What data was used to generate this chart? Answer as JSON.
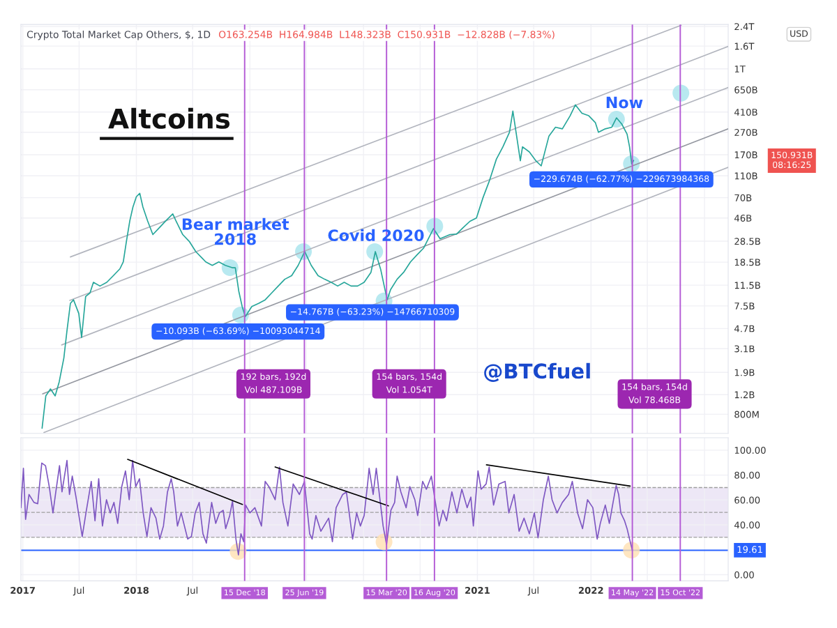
{
  "chart_data": [
    {
      "type": "line",
      "title": "Crypto Total Market Cap Others, $, 1D",
      "subtitle": "O163.254B  H164.984B  L148.323B  C150.931B  −12.828B (−7.83%)",
      "log": "y",
      "grid": true,
      "tick_labels": "y",
      "xlim": [
        "2016-12-26",
        "2023-03-18"
      ],
      "xticks": [
        "2017-01-01",
        "2017-07-01",
        "2018-01-01",
        "2018-07-01",
        "2019-01-01",
        "2019-07-01",
        "2020-01-01",
        "2020-07-01",
        "2021-01-01",
        "2021-07-01",
        "2022-01-01",
        "2022-07-01",
        "2023-01-01"
      ],
      "ylim": [
        540000000.0,
        2500000000000.0
      ],
      "yticks": [
        {
          "value": 800000000.0,
          "label": "800M"
        },
        {
          "value": 1200000000.0,
          "label": "1.2B"
        },
        {
          "value": 1900000000.0,
          "label": "1.9B"
        },
        {
          "value": 3100000000.0,
          "label": "3.1B"
        },
        {
          "value": 4700000000.0,
          "label": "4.7B"
        },
        {
          "value": 7500000000.0,
          "label": "7.5B"
        },
        {
          "value": 11500000000.0,
          "label": "11.5B"
        },
        {
          "value": 18500000000.0,
          "label": "18.5B"
        },
        {
          "value": 28500000000.0,
          "label": "28.5B"
        },
        {
          "value": 46000000000.0,
          "label": "46B"
        },
        {
          "value": 70000000000.0,
          "label": "70B"
        },
        {
          "value": 110000000000.0,
          "label": "110B"
        },
        {
          "value": 170000000000.0,
          "label": "170B"
        },
        {
          "value": 270000000000.0,
          "label": "270B"
        },
        {
          "value": 410000000000.0,
          "label": "410B"
        },
        {
          "value": 650000000000.0,
          "label": "650B"
        },
        {
          "value": 1000000000000.0,
          "label": "1T"
        },
        {
          "value": 1600000000000.0,
          "label": "1.6T"
        },
        {
          "value": 2400000000000.0,
          "label": "2.4T"
        }
      ],
      "series": [
        {
          "color": "#b2b5be",
          "x": [
            "2017-06-03",
            "2022-10-18"
          ],
          "values": [
            20600000000.0,
            2461000000000.0
          ]
        },
        {
          "color": "#b2b5be",
          "x": [
            "2017-06-01",
            "2023-03-18"
          ],
          "values": [
            8400000000.0,
            1590000000000.0
          ]
        },
        {
          "color": "#b2b5be",
          "x": [
            "2017-05-06",
            "2023-03-18"
          ],
          "values": [
            3350000000.0,
            680000000000.0
          ]
        },
        {
          "color": "#9598a1",
          "x": [
            "2017-03-06",
            "2023-03-18"
          ],
          "values": [
            1220000000.0,
            290000000000.0
          ]
        },
        {
          "color": "#b2b5be",
          "x": [
            "2017-03-10",
            "2023-03-18"
          ],
          "values": [
            550000000.0,
            131000000000.0
          ]
        },
        {
          "type": "scatter",
          "marker": "circle",
          "color": "#a6e3ec",
          "x": [
            "2018-10-29",
            "2018-12-02",
            "2019-06-22",
            "2020-02-06",
            "2020-03-07",
            "2020-08-17",
            "2022-03-24",
            "2022-05-11",
            "2022-10-17"
          ],
          "values": [
            16500000000.0,
            6200000000.0,
            23000000000.0,
            23000000000.0,
            8300000000.0,
            38800000000.0,
            354000000000.0,
            141000000000.0,
            606000000000.0
          ]
        },
        {
          "color": "#26a69a",
          "x": [
            "2017-03-04",
            "2017-03-16",
            "2017-03-31",
            "2017-04-15",
            "2017-04-28",
            "2017-05-13",
            "2017-05-23",
            "2017-06-03",
            "2017-06-13",
            "2017-06-30",
            "2017-07-09",
            "2017-07-22",
            "2017-08-05",
            "2017-08-16",
            "2017-09-06",
            "2017-09-28",
            "2017-10-19",
            "2017-11-09",
            "2017-11-20",
            "2017-11-30",
            "2017-12-11",
            "2017-12-21",
            "2018-01-01",
            "2018-01-12",
            "2018-01-22",
            "2018-02-06",
            "2018-02-23",
            "2018-03-16",
            "2018-04-06",
            "2018-04-28",
            "2018-05-08",
            "2018-05-30",
            "2018-06-20",
            "2018-07-11",
            "2018-08-01",
            "2018-08-12",
            "2018-09-02",
            "2018-09-23",
            "2018-10-14",
            "2018-11-05",
            "2018-11-15",
            "2018-11-26",
            "2018-12-07",
            "2018-12-17",
            "2019-01-07",
            "2019-01-29",
            "2019-02-19",
            "2019-03-12",
            "2019-04-02",
            "2019-04-23",
            "2019-05-15",
            "2019-06-05",
            "2019-06-26",
            "2019-07-17",
            "2019-08-08",
            "2019-08-29",
            "2019-09-19",
            "2019-10-10",
            "2019-10-31",
            "2019-11-22",
            "2019-12-13",
            "2020-01-03",
            "2020-01-25",
            "2020-02-08",
            "2020-02-25",
            "2020-03-17",
            "2020-03-28",
            "2020-04-18",
            "2020-05-09",
            "2020-05-31",
            "2020-06-21",
            "2020-07-12",
            "2020-08-13",
            "2020-09-03",
            "2020-10-05",
            "2020-10-26",
            "2020-11-16",
            "2020-12-08",
            "2020-12-29",
            "2021-01-19",
            "2021-02-09",
            "2021-03-03",
            "2021-03-24",
            "2021-04-14",
            "2021-04-25",
            "2021-05-19",
            "2021-05-26",
            "2021-06-17",
            "2021-07-08",
            "2021-07-25",
            "2021-08-19",
            "2021-09-09",
            "2021-10-01",
            "2021-10-26",
            "2021-11-12",
            "2021-12-03",
            "2021-12-25",
            "2022-01-15",
            "2022-01-25",
            "2022-02-16",
            "2022-03-09",
            "2022-03-24",
            "2022-04-10",
            "2022-04-27",
            "2022-05-05",
            "2022-05-12",
            "2022-05-18"
          ],
          "values": [
            600000000.0,
            1170000000.0,
            1350000000.0,
            1170000000.0,
            1560000000.0,
            2560000000.0,
            4500000000.0,
            7900000000.0,
            8500000000.0,
            6400000000.0,
            3900000000.0,
            9100000000.0,
            9800000000.0,
            12200000000.0,
            11300000000.0,
            12200000000.0,
            14000000000.0,
            16100000000.0,
            18600000000.0,
            28400000000.0,
            43500000000.0,
            57700000000.0,
            71400000000.0,
            76600000000.0,
            57700000000.0,
            43500000000.0,
            32700000000.0,
            37700000000.0,
            43500000000.0,
            50100000000.0,
            43500000000.0,
            32700000000.0,
            28400000000.0,
            23000000000.0,
            20000000000.0,
            18600000000.0,
            17300000000.0,
            18600000000.0,
            17300000000.0,
            16500000000.0,
            16500000000.0,
            10200000000.0,
            7400000000.0,
            6000000000.0,
            7400000000.0,
            7900000000.0,
            8500000000.0,
            9800000000.0,
            11300000000.0,
            13000000000.0,
            14000000000.0,
            17300000000.0,
            23000000000.0,
            17300000000.0,
            14000000000.0,
            13000000000.0,
            12200000000.0,
            11300000000.0,
            12200000000.0,
            11300000000.0,
            11300000000.0,
            12200000000.0,
            15000000000.0,
            23000000000.0,
            16000000000.0,
            8500000000.0,
            10500000000.0,
            13000000000.0,
            15000000000.0,
            18600000000.0,
            21500000000.0,
            24700000000.0,
            37000000000.0,
            30000000000.0,
            32700000000.0,
            33000000000.0,
            37700000000.0,
            43000000000.0,
            46000000000.0,
            70000000000.0,
            100000000000.0,
            155000000000.0,
            200000000000.0,
            270000000000.0,
            419000000000.0,
            150000000000.0,
            200000000000.0,
            180000000000.0,
            150000000000.0,
            135000000000.0,
            250000000000.0,
            300000000000.0,
            290000000000.0,
            380000000000.0,
            476000000000.0,
            400000000000.0,
            380000000000.0,
            330000000000.0,
            270000000000.0,
            290000000000.0,
            300000000000.0,
            364000000000.0,
            320000000000.0,
            260000000000.0,
            200000000000.0,
            140000000000.0,
            151000000000.0
          ]
        }
      ],
      "ref_lines": [
        {
          "axis": "x",
          "value": "2018-12-15",
          "color": "#b45cd6"
        },
        {
          "axis": "x",
          "value": "2019-06-25",
          "color": "#b45cd6"
        },
        {
          "axis": "x",
          "value": "2020-03-15",
          "color": "#b45cd6"
        },
        {
          "axis": "x",
          "value": "2020-08-16",
          "color": "#b45cd6"
        },
        {
          "axis": "x",
          "value": "2022-05-14",
          "color": "#b45cd6"
        },
        {
          "axis": "x",
          "value": "2022-10-15",
          "color": "#b45cd6"
        }
      ],
      "annotations": [
        "Altcoins",
        "USD",
        "Bear market\n2018",
        "Covid 2020",
        "Now",
        "−10.093B (−63.69%) −10093044714",
        "−14.767B (−63.23%) −14766710309",
        "−229.674B (−62.77%) −229673984368",
        "192 bars, 192d\nVol 487.109B",
        "154 bars, 154d\nVol 1.054T",
        "154 bars, 154d\nVol 78.468B",
        "@BTCfuel",
        "150.931B\n08:16:25"
      ]
    },
    {
      "type": "line",
      "grid": true,
      "xlim": [
        "2016-12-26",
        "2023-03-18"
      ],
      "xticks": [
        {
          "value": "2017-01-01",
          "label": "2017"
        },
        {
          "value": "2017-07-01",
          "label": "Jul"
        },
        {
          "value": "2018-01-01",
          "label": "2018"
        },
        {
          "value": "2018-07-01",
          "label": "Jul"
        },
        {
          "value": "2019-01-01",
          "label": null
        },
        {
          "value": "2019-07-01",
          "label": null
        },
        {
          "value": "2020-01-01",
          "label": null
        },
        {
          "value": "2020-07-01",
          "label": null
        },
        {
          "value": "2021-01-01",
          "label": "2021"
        },
        {
          "value": "2021-07-01",
          "label": "Jul"
        },
        {
          "value": "2022-01-01",
          "label": "2022"
        },
        {
          "value": "2022-07-01",
          "label": null
        },
        {
          "value": "2023-01-01",
          "label": null
        }
      ],
      "ylim": [
        -5,
        110
      ],
      "yticks": [
        {
          "value": 0,
          "label": "0.00"
        },
        {
          "value": 40,
          "label": "40.00"
        },
        {
          "value": 60,
          "label": "60.00"
        },
        {
          "value": 80,
          "label": "80.00"
        },
        {
          "value": 100,
          "label": "100.00"
        }
      ],
      "bands": [
        {
          "axis": "y",
          "from": 30,
          "to": 70,
          "color": "#ede7f6"
        }
      ],
      "ref_lines": [
        {
          "axis": "y",
          "value": 70,
          "color": "#9e9e9e",
          "line_style": "dashed"
        },
        {
          "axis": "y",
          "value": 50,
          "color": "#9e9e9e",
          "line_style": "dashed"
        },
        {
          "axis": "y",
          "value": 30,
          "color": "#9e9e9e",
          "line_style": "dashed"
        },
        {
          "axis": "y",
          "value": 19.61,
          "color": "#2962ff",
          "label": "19.61"
        },
        {
          "axis": "x",
          "value": "2018-12-15",
          "color": "#b45cd6",
          "label": "15 Dec '18"
        },
        {
          "axis": "x",
          "value": "2019-06-25",
          "color": "#b45cd6",
          "label": "25 Jun '19"
        },
        {
          "axis": "x",
          "value": "2020-03-15",
          "color": "#b45cd6",
          "label": "15 Mar '20"
        },
        {
          "axis": "x",
          "value": "2020-08-16",
          "color": "#b45cd6",
          "label": "16 Aug '20"
        },
        {
          "axis": "x",
          "value": "2022-05-14",
          "color": "#b45cd6",
          "label": "14 May '22"
        },
        {
          "axis": "x",
          "value": "2022-10-15",
          "color": "#b45cd6",
          "label": "15 Oct '22"
        }
      ],
      "series": [
        {
          "type": "scatter",
          "marker": "circle",
          "color": "#ffe0b2",
          "x": [
            "2018-11-24",
            "2020-03-07",
            "2022-05-11"
          ],
          "values": [
            18.6,
            26.3,
            19.7
          ]
        },
        {
          "color": "#7e57c2",
          "x": [
            "2016-12-26",
            "2017-01-03",
            "2017-01-10",
            "2017-01-21",
            "2017-02-06",
            "2017-02-18",
            "2017-03-03",
            "2017-03-15",
            "2017-03-27",
            "2017-04-08",
            "2017-04-16",
            "2017-04-29",
            "2017-05-07",
            "2017-05-23",
            "2017-05-31",
            "2017-06-09",
            "2017-06-21",
            "2017-07-11",
            "2017-07-23",
            "2017-08-09",
            "2017-08-21",
            "2017-09-02",
            "2017-09-14",
            "2017-09-27",
            "2017-10-09",
            "2017-10-21",
            "2017-11-02",
            "2017-11-15",
            "2017-11-27",
            "2017-12-09",
            "2017-12-20",
            "2017-12-30",
            "2018-01-11",
            "2018-01-23",
            "2018-02-04",
            "2018-02-17",
            "2018-03-05",
            "2018-03-17",
            "2018-03-29",
            "2018-04-11",
            "2018-04-23",
            "2018-05-01",
            "2018-05-13",
            "2018-05-25",
            "2018-06-15",
            "2018-06-27",
            "2018-07-09",
            "2018-07-22",
            "2018-08-03",
            "2018-08-14",
            "2018-08-31",
            "2018-09-13",
            "2018-09-25",
            "2018-10-07",
            "2018-10-15",
            "2018-10-28",
            "2018-11-06",
            "2018-11-17",
            "2018-11-25",
            "2018-12-03",
            "2018-12-12",
            "2018-12-18",
            "2019-01-01",
            "2019-01-17",
            "2019-02-07",
            "2019-02-19",
            "2019-03-03",
            "2019-03-23",
            "2019-04-06",
            "2019-04-17",
            "2019-05-03",
            "2019-05-20",
            "2019-06-09",
            "2019-06-25",
            "2019-07-12",
            "2019-07-20",
            "2019-08-01",
            "2019-08-17",
            "2019-09-11",
            "2019-09-23",
            "2019-10-05",
            "2019-10-26",
            "2019-11-07",
            "2019-11-27",
            "2019-12-10",
            "2019-12-22",
            "2020-01-03",
            "2020-01-15",
            "2020-01-19",
            "2020-02-01",
            "2020-02-11",
            "2020-02-25",
            "2020-03-04",
            "2020-03-15",
            "2020-03-29",
            "2020-04-10",
            "2020-04-18",
            "2020-04-30",
            "2020-05-17",
            "2020-05-29",
            "2020-06-14",
            "2020-06-23",
            "2020-07-09",
            "2020-07-21",
            "2020-08-06",
            "2020-08-19",
            "2020-08-31",
            "2020-09-12",
            "2020-09-24",
            "2020-10-11",
            "2020-10-27",
            "2020-11-12",
            "2020-11-29",
            "2020-12-11",
            "2020-12-19",
            "2021-01-03",
            "2021-01-13",
            "2021-01-29",
            "2021-02-08",
            "2021-02-22",
            "2021-03-11",
            "2021-03-31",
            "2021-04-12",
            "2021-04-29",
            "2021-05-15",
            "2021-05-31",
            "2021-06-17",
            "2021-07-03",
            "2021-07-15",
            "2021-08-01",
            "2021-08-17",
            "2021-08-29",
            "2021-09-14",
            "2021-10-01",
            "2021-10-21",
            "2021-11-02",
            "2021-11-19",
            "2021-12-05",
            "2021-12-21",
            "2022-01-07",
            "2022-01-21",
            "2022-01-31",
            "2022-02-16",
            "2022-03-01",
            "2022-03-13",
            "2022-03-23",
            "2022-03-31",
            "2022-04-07",
            "2022-04-19",
            "2022-04-27",
            "2022-05-05",
            "2022-05-14"
          ],
          "values": [
            53.8,
            85.4,
            44.4,
            64.4,
            58.0,
            57.0,
            89.6,
            87.5,
            70.7,
            49.6,
            64.4,
            87.5,
            66.5,
            91.7,
            64.4,
            79.1,
            62.3,
            30.7,
            49.6,
            74.9,
            43.3,
            77.0,
            39.1,
            60.2,
            49.6,
            58.0,
            41.2,
            70.7,
            83.3,
            60.2,
            91.7,
            70.7,
            77.0,
            49.6,
            30.7,
            53.8,
            45.4,
            28.6,
            39.1,
            66.5,
            77.0,
            66.5,
            39.1,
            49.6,
            28.6,
            30.7,
            49.6,
            58.0,
            32.8,
            25.4,
            58.0,
            41.2,
            49.6,
            51.7,
            37.0,
            47.5,
            59.1,
            28.6,
            15.9,
            32.8,
            26.5,
            55.9,
            49.6,
            53.8,
            39.1,
            74.9,
            70.7,
            60.2,
            86.5,
            58.0,
            39.1,
            72.8,
            64.4,
            74.9,
            32.8,
            28.6,
            47.5,
            34.9,
            45.4,
            26.5,
            53.8,
            64.4,
            66.5,
            28.6,
            49.6,
            39.1,
            47.5,
            74.9,
            85.4,
            64.4,
            85.4,
            55.9,
            39.1,
            24.3,
            51.7,
            58.0,
            79.1,
            66.5,
            53.8,
            70.7,
            60.2,
            47.5,
            74.9,
            68.6,
            79.1,
            58.0,
            39.1,
            51.7,
            43.3,
            66.5,
            49.6,
            68.6,
            53.8,
            62.3,
            39.1,
            83.3,
            68.6,
            72.8,
            86.5,
            55.9,
            72.8,
            74.9,
            49.6,
            64.4,
            34.9,
            45.4,
            32.8,
            49.6,
            29.6,
            60.2,
            79.1,
            60.2,
            49.6,
            58.0,
            64.4,
            74.9,
            49.6,
            37.0,
            60.2,
            53.8,
            28.6,
            41.2,
            55.9,
            41.2,
            58.0,
            71.7,
            64.4,
            49.6,
            43.3,
            37.0,
            28.6,
            19.6
          ]
        },
        {
          "color": "#000000",
          "x": [
            "2017-12-04",
            "2018-12-08"
          ],
          "values": [
            92.6,
            56.4
          ]
        },
        {
          "color": "#000000",
          "x": [
            "2019-03-23",
            "2020-03-21"
          ],
          "values": [
            86.5,
            55.3
          ]
        },
        {
          "color": "#000000",
          "x": [
            "2021-01-30",
            "2022-05-07"
          ],
          "values": [
            88.2,
            71.2
          ]
        }
      ]
    }
  ]
}
